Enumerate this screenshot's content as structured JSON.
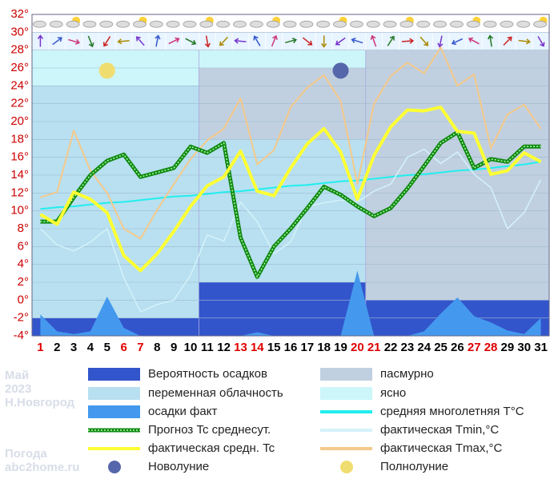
{
  "chart_data": {
    "type": "line",
    "x": [
      1,
      2,
      3,
      4,
      5,
      6,
      7,
      8,
      9,
      10,
      11,
      12,
      13,
      14,
      15,
      16,
      17,
      18,
      19,
      20,
      21,
      22,
      23,
      24,
      25,
      26,
      27,
      28,
      29,
      30,
      31
    ],
    "x_label_colors": [
      "#e00000",
      "#000",
      "#000",
      "#000",
      "#000",
      "#e00000",
      "#e00000",
      "#000",
      "#000",
      "#000",
      "#000",
      "#000",
      "#e00000",
      "#e00000",
      "#000",
      "#000",
      "#000",
      "#000",
      "#000",
      "#e00000",
      "#e00000",
      "#000",
      "#000",
      "#000",
      "#000",
      "#000",
      "#e00000",
      "#e00000",
      "#000",
      "#000",
      "#000"
    ],
    "xlim": [
      0.5,
      31.5
    ],
    "ylim": [
      -4,
      32
    ],
    "yticks": [
      {
        "value": -4,
        "label": "-4°"
      },
      {
        "value": -2,
        "label": "-2°"
      },
      {
        "value": 0,
        "label": "0°"
      },
      {
        "value": 2,
        "label": "2°"
      },
      {
        "value": 4,
        "label": "4°"
      },
      {
        "value": 6,
        "label": "6°"
      },
      {
        "value": 8,
        "label": "8°"
      },
      {
        "value": 10,
        "label": "10°"
      },
      {
        "value": 12,
        "label": "12°"
      },
      {
        "value": 14,
        "label": "14°"
      },
      {
        "value": 16,
        "label": "16°"
      },
      {
        "value": 18,
        "label": "18°"
      },
      {
        "value": 20,
        "label": "20°"
      },
      {
        "value": 22,
        "label": "22°"
      },
      {
        "value": 24,
        "label": "24°"
      },
      {
        "value": 26,
        "label": "26°"
      },
      {
        "value": 28,
        "label": "28°"
      },
      {
        "value": 30,
        "label": "30°"
      },
      {
        "value": 32,
        "label": "32°"
      }
    ],
    "areas": [
      {
        "name": "Вероятность осадков",
        "color": "#3355cc"
      },
      {
        "name": "переменная облачность",
        "color": "#b8e0f0"
      },
      {
        "name": "пасмурно",
        "color": "#c0d0e0"
      },
      {
        "name": "ясно",
        "color": "#ccf6fa"
      }
    ],
    "periods": [
      {
        "from": 1,
        "to": 10,
        "layers": [
          {
            "area": 3,
            "top": 28,
            "bottom": 24
          },
          {
            "area": 1,
            "top": 24,
            "bottom": -2
          },
          {
            "area": 0,
            "top": -2,
            "bottom": -4
          }
        ]
      },
      {
        "from": 11,
        "to": 20,
        "layers": [
          {
            "area": 3,
            "top": 28,
            "bottom": 26
          },
          {
            "area": 2,
            "top": 26,
            "bottom": 18
          },
          {
            "area": 1,
            "top": 18,
            "bottom": 2
          },
          {
            "area": 0,
            "top": 2,
            "bottom": -4
          }
        ]
      },
      {
        "from": 21,
        "to": 31,
        "layers": [
          {
            "area": 2,
            "top": 28,
            "bottom": 0
          },
          {
            "area": 0,
            "top": 0,
            "bottom": -4
          }
        ]
      }
    ],
    "precip": {
      "name": "осадки факт",
      "color": "#4499ee",
      "values": [
        -1.6,
        -3.5,
        -3.8,
        -3.5,
        0.4,
        -3.1,
        -4,
        -4,
        -4,
        -4,
        -4,
        -4,
        -4,
        -3.6,
        -4,
        -4,
        -4,
        -4,
        -4,
        3.3,
        -4,
        -4,
        -4,
        -3.5,
        -1.5,
        0.3,
        -1.8,
        -2.5,
        -3.4,
        -3.8,
        -2
      ]
    },
    "series": [
      {
        "name": "средняя многолетняя T°C",
        "color": "#22eeee",
        "values": [
          10.2,
          10.4,
          10.5,
          10.7,
          10.9,
          11.0,
          11.2,
          11.4,
          11.6,
          11.7,
          11.9,
          12.1,
          12.2,
          12.4,
          12.6,
          12.8,
          12.9,
          13.1,
          13.3,
          13.4,
          13.6,
          13.8,
          14.0,
          14.1,
          14.3,
          14.5,
          14.6,
          14.8,
          15.0,
          15.2,
          15.5
        ]
      },
      {
        "name": "фактическая Tmin,°C",
        "color": "#d4f2fa",
        "values": [
          8,
          6.2,
          5.5,
          6.5,
          8,
          2.5,
          -1.3,
          -0.5,
          0,
          2.8,
          7.3,
          6.6,
          11,
          8.8,
          5.2,
          6.5,
          10.5,
          10.9,
          11.2,
          11,
          12.2,
          13,
          16,
          16.9,
          15.3,
          16.6,
          14.1,
          12.6,
          8,
          9.8,
          13.5
        ]
      },
      {
        "name": "фактическая Tmax,°C",
        "color": "#f5c98a",
        "values": [
          11.5,
          12.1,
          19,
          14.5,
          12,
          8,
          6.9,
          10.1,
          13,
          15.8,
          17.9,
          19.2,
          22.6,
          15.2,
          16.8,
          21.6,
          23.8,
          25.2,
          22.3,
          13,
          22,
          25.1,
          26.6,
          25.4,
          28.3,
          24,
          25.3,
          17,
          20.8,
          21.9,
          19.2
        ]
      },
      {
        "name": "Прогноз Tc среднесут.",
        "color": "#118811",
        "values": [
          8.8,
          8.8,
          11.5,
          14,
          15.6,
          16.3,
          13.8,
          14.3,
          14.8,
          17.2,
          16.5,
          17.6,
          7,
          2.6,
          6,
          8,
          10.3,
          12.7,
          11.8,
          10.5,
          9.4,
          10.3,
          12.5,
          15,
          17.6,
          18.8,
          14.8,
          15.8,
          15.5,
          17.2,
          17.2
        ]
      },
      {
        "name": "фактическая средн. Tc",
        "color": "#ffff33",
        "values": [
          9.6,
          8.5,
          12.1,
          11.3,
          9.8,
          5,
          3.3,
          5.2,
          7.7,
          10.5,
          12.8,
          13.8,
          16.7,
          12.2,
          11.7,
          14.8,
          17.5,
          19.2,
          16.6,
          11.3,
          16.2,
          19.4,
          21.3,
          21.2,
          21.6,
          18.9,
          18.7,
          14.1,
          14.5,
          16.5,
          15.5
        ]
      }
    ],
    "moons": [
      {
        "name": "Новолуние",
        "day": 19,
        "color": "#5566aa"
      },
      {
        "name": "Полнолуние",
        "day": 5,
        "color": "#f0dd70"
      }
    ],
    "watermark": [
      "Май",
      "2023",
      "Н.Новгород",
      "Погода",
      "abc2home.ru"
    ]
  }
}
